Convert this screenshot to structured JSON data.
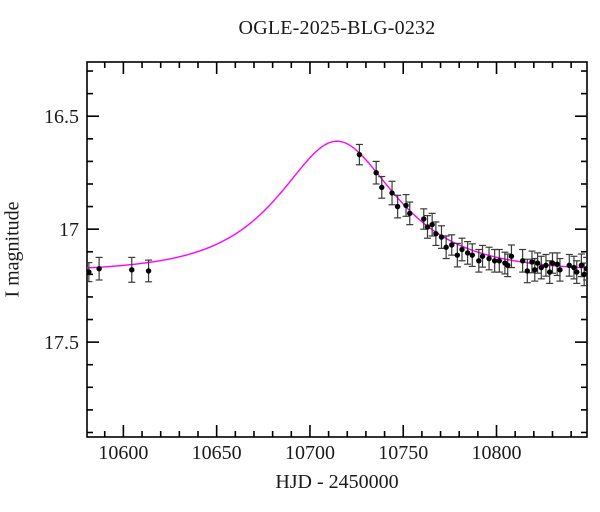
{
  "figure": {
    "background": "#ffffff"
  },
  "chart_data": {
    "type": "scatter",
    "title": "OGLE-2025-BLG-0232",
    "xlabel": "HJD - 2450000",
    "ylabel": "I magnitude",
    "grid": false,
    "legend": null,
    "x_axis": {
      "min": 10580.5,
      "max": 10848.5,
      "major_ticks": [
        10600,
        10650,
        10700,
        10750,
        10800
      ],
      "major_labels": [
        "10600",
        "10650",
        "10700",
        "10750",
        "10800"
      ],
      "minor_step": 10
    },
    "y_axis": {
      "min": 16.26,
      "max": 17.92,
      "inverted_magnitude_axis": true,
      "major_ticks": [
        16.5,
        17,
        17.5
      ],
      "major_labels": [
        "16.5",
        "17",
        "17.5"
      ],
      "minor_step": 0.1
    },
    "model_curve": {
      "name": "microlensing-model",
      "color": "#ff00ff",
      "line_width": 1.4,
      "paczynski_params": {
        "t0": 10714.5,
        "tE": 46,
        "u0": 0.685,
        "I0": 17.19
      },
      "peak": {
        "hjd": 10714.5,
        "mag": 16.61
      }
    },
    "data_series": {
      "name": "OGLE-I-band-photometry",
      "marker_color": "#000000",
      "errorbar_color": "#3a3a3a",
      "marker_radius": 2.7,
      "points": [
        [
          10581.5,
          17.19,
          0.042
        ],
        [
          10587.0,
          17.175,
          0.05
        ],
        [
          10604.5,
          17.18,
          0.055
        ],
        [
          10613.5,
          17.185,
          0.048
        ],
        [
          10726.5,
          16.67,
          0.045
        ],
        [
          10735.5,
          16.75,
          0.05
        ],
        [
          10738.5,
          16.815,
          0.048
        ],
        [
          10744.0,
          16.84,
          0.052
        ],
        [
          10747.0,
          16.9,
          0.05
        ],
        [
          10751.5,
          16.895,
          0.048
        ],
        [
          10753.5,
          16.93,
          0.05
        ],
        [
          10761.0,
          16.955,
          0.045
        ],
        [
          10763.0,
          16.99,
          0.05
        ],
        [
          10765.5,
          16.98,
          0.05
        ],
        [
          10767.5,
          17.02,
          0.052
        ],
        [
          10770.5,
          17.035,
          0.05
        ],
        [
          10773.0,
          17.08,
          0.05
        ],
        [
          10776.0,
          17.07,
          0.045
        ],
        [
          10779.0,
          17.115,
          0.052
        ],
        [
          10781.5,
          17.09,
          0.05
        ],
        [
          10784.5,
          17.105,
          0.05
        ],
        [
          10787.0,
          17.115,
          0.05
        ],
        [
          10790.5,
          17.14,
          0.05
        ],
        [
          10792.5,
          17.12,
          0.048
        ],
        [
          10796.0,
          17.13,
          0.05
        ],
        [
          10799.0,
          17.14,
          0.05
        ],
        [
          10801.5,
          17.14,
          0.05
        ],
        [
          10804.5,
          17.15,
          0.048
        ],
        [
          10806.0,
          17.16,
          0.05
        ],
        [
          10808.0,
          17.12,
          0.05
        ],
        [
          10814.0,
          17.14,
          0.05
        ],
        [
          10816.5,
          17.185,
          0.052
        ],
        [
          10819.0,
          17.145,
          0.048
        ],
        [
          10820.5,
          17.18,
          0.05
        ],
        [
          10822.0,
          17.15,
          0.045
        ],
        [
          10824.0,
          17.17,
          0.05
        ],
        [
          10826.5,
          17.16,
          0.048
        ],
        [
          10828.5,
          17.19,
          0.05
        ],
        [
          10830.0,
          17.15,
          0.045
        ],
        [
          10832.5,
          17.155,
          0.05
        ],
        [
          10834.0,
          17.18,
          0.05
        ],
        [
          10839.0,
          17.16,
          0.048
        ],
        [
          10841.5,
          17.17,
          0.05
        ],
        [
          10843.0,
          17.19,
          0.05
        ],
        [
          10845.5,
          17.16,
          0.05
        ],
        [
          10847.0,
          17.2,
          0.05
        ],
        [
          10848.3,
          17.175,
          0.05
        ]
      ]
    },
    "axis_style": {
      "box_color": "#000000",
      "major_tick_len": 12,
      "minor_tick_len": 6,
      "ticks_inward_all_sides": true
    }
  }
}
